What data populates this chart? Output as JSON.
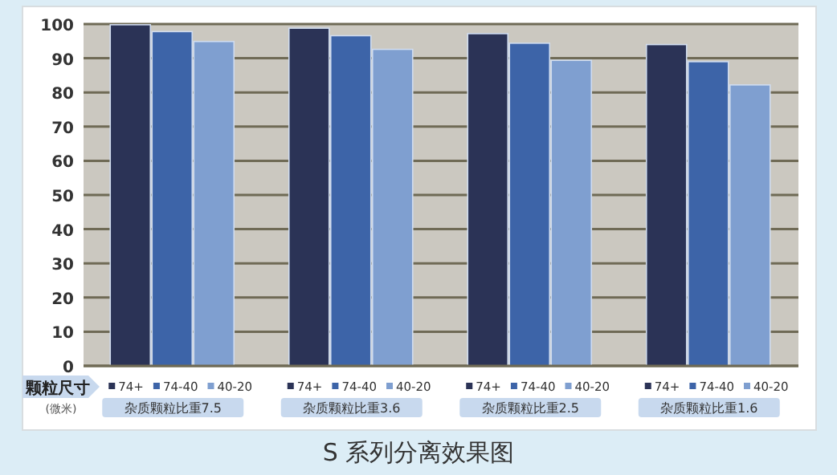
{
  "chart_data": {
    "type": "bar",
    "title": "S 系列分离效果图",
    "xlabel": "颗粒尺寸",
    "annotations": [
      "(微米)"
    ],
    "categories": [
      "杂质颗粒比重7.5",
      "杂质颗粒比重3.6",
      "杂质颗粒比重2.5",
      "杂质颗粒比重1.6"
    ],
    "series": [
      {
        "name": "74+",
        "color": "#2b3356",
        "values": [
          99.8,
          98.8,
          97.2,
          94
        ]
      },
      {
        "name": "74-40",
        "color": "#3d64a8",
        "values": [
          97.8,
          96.6,
          94.4,
          89
        ]
      },
      {
        "name": "40-20",
        "color": "#7f9fd0",
        "values": [
          94.9,
          92.6,
          89.4,
          82.2
        ]
      }
    ],
    "ylim": [
      0,
      100
    ],
    "yticks": [
      0,
      10,
      20,
      30,
      40,
      50,
      60,
      70,
      80,
      90,
      100
    ],
    "grid": "y",
    "legend": "bottom"
  }
}
